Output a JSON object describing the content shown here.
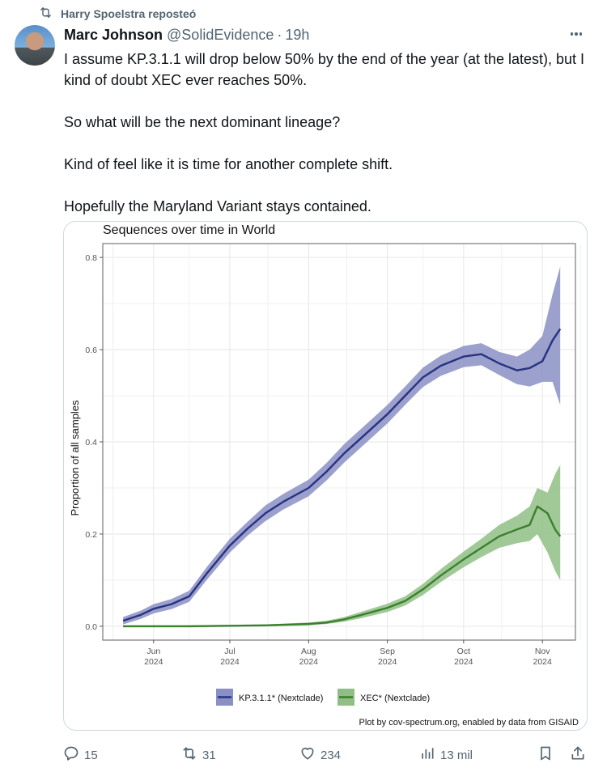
{
  "repost": {
    "icon": "repost-icon",
    "text": "Harry Spoelstra reposteó"
  },
  "author": {
    "avatar": "avatar",
    "name": "Marc Johnson",
    "handle": "@SolidEvidence",
    "separator": "·",
    "time": "19h"
  },
  "more_icon": "more-icon",
  "tweet": {
    "paragraphs": [
      "I assume KP.3.1.1 will drop below 50% by the end of the year (at the latest), but I kind of doubt XEC ever reaches 50%.",
      "So what will be the next dominant lineage?",
      "Kind of feel like it is time for another complete shift.",
      "Hopefully the Maryland Variant stays contained."
    ]
  },
  "actions": {
    "reply": {
      "icon": "reply-icon",
      "count": "15"
    },
    "repost": {
      "icon": "repost-icon",
      "count": "31"
    },
    "like": {
      "icon": "heart-icon",
      "count": "234"
    },
    "views": {
      "icon": "views-icon",
      "count": "13 mil"
    },
    "bookmark": {
      "icon": "bookmark-icon"
    },
    "share": {
      "icon": "share-icon"
    }
  },
  "colors": {
    "kp_line": "#283380",
    "kp_band": "#8a8fc4",
    "xec_line": "#3b7f2e",
    "xec_band": "#8fbf85",
    "text_secondary": "#536471"
  },
  "chart_data": {
    "type": "line",
    "title": "Sequences over time in World",
    "xlabel": "",
    "ylabel": "Proportion of all samples",
    "ylim": [
      -0.03,
      0.83
    ],
    "yticks": [
      0.0,
      0.2,
      0.4,
      0.6,
      0.8
    ],
    "ytick_labels": [
      "0.0",
      "0.2",
      "0.4",
      "0.6",
      "0.8"
    ],
    "xrange": [
      "2024-05-12",
      "2024-11-14"
    ],
    "xticks": [
      "2024-06-01",
      "2024-07-01",
      "2024-08-01",
      "2024-09-01",
      "2024-10-01",
      "2024-11-01"
    ],
    "xtick_labels": [
      [
        "Jun",
        "2024"
      ],
      [
        "Jul",
        "2024"
      ],
      [
        "Aug",
        "2024"
      ],
      [
        "Sep",
        "2024"
      ],
      [
        "Oct",
        "2024"
      ],
      [
        "Nov",
        "2024"
      ]
    ],
    "grid": true,
    "legend_position": "bottom",
    "caption": "Plot by cov-spectrum.org, enabled by data from GISAID",
    "series": [
      {
        "name": "KP.3.1.1* (Nextclade)",
        "x": [
          "2024-05-20",
          "2024-05-27",
          "2024-06-01",
          "2024-06-08",
          "2024-06-15",
          "2024-06-22",
          "2024-07-01",
          "2024-07-08",
          "2024-07-15",
          "2024-07-22",
          "2024-08-01",
          "2024-08-08",
          "2024-08-15",
          "2024-08-22",
          "2024-09-01",
          "2024-09-08",
          "2024-09-15",
          "2024-09-22",
          "2024-10-01",
          "2024-10-08",
          "2024-10-15",
          "2024-10-22",
          "2024-10-27",
          "2024-11-01",
          "2024-11-05",
          "2024-11-08"
        ],
        "values": [
          0.012,
          0.025,
          0.038,
          0.048,
          0.065,
          0.115,
          0.175,
          0.212,
          0.245,
          0.27,
          0.3,
          0.335,
          0.375,
          0.41,
          0.46,
          0.5,
          0.54,
          0.565,
          0.585,
          0.59,
          0.57,
          0.555,
          0.56,
          0.575,
          0.62,
          0.645
        ],
        "lower": [
          0.004,
          0.016,
          0.028,
          0.037,
          0.053,
          0.101,
          0.16,
          0.197,
          0.228,
          0.253,
          0.282,
          0.316,
          0.355,
          0.39,
          0.44,
          0.48,
          0.519,
          0.543,
          0.562,
          0.566,
          0.545,
          0.525,
          0.52,
          0.53,
          0.53,
          0.48
        ],
        "upper": [
          0.02,
          0.034,
          0.048,
          0.059,
          0.077,
          0.129,
          0.19,
          0.227,
          0.262,
          0.287,
          0.318,
          0.354,
          0.395,
          0.43,
          0.48,
          0.52,
          0.561,
          0.587,
          0.608,
          0.614,
          0.595,
          0.585,
          0.6,
          0.63,
          0.72,
          0.78
        ]
      },
      {
        "name": "XEC* (Nextclade)",
        "x": [
          "2024-05-20",
          "2024-06-15",
          "2024-07-15",
          "2024-08-01",
          "2024-08-08",
          "2024-08-15",
          "2024-08-22",
          "2024-09-01",
          "2024-09-08",
          "2024-09-15",
          "2024-09-22",
          "2024-10-01",
          "2024-10-08",
          "2024-10-15",
          "2024-10-22",
          "2024-10-27",
          "2024-10-30",
          "2024-11-03",
          "2024-11-06",
          "2024-11-08"
        ],
        "values": [
          0.0,
          0.0,
          0.002,
          0.005,
          0.008,
          0.015,
          0.025,
          0.04,
          0.055,
          0.08,
          0.11,
          0.145,
          0.17,
          0.195,
          0.21,
          0.22,
          0.26,
          0.245,
          0.21,
          0.195
        ],
        "lower": [
          0.0,
          0.0,
          0.0,
          0.002,
          0.005,
          0.01,
          0.018,
          0.031,
          0.045,
          0.068,
          0.096,
          0.128,
          0.15,
          0.17,
          0.18,
          0.185,
          0.2,
          0.16,
          0.12,
          0.1
        ],
        "upper": [
          0.002,
          0.002,
          0.004,
          0.008,
          0.012,
          0.02,
          0.032,
          0.049,
          0.065,
          0.092,
          0.124,
          0.162,
          0.19,
          0.22,
          0.24,
          0.26,
          0.3,
          0.29,
          0.33,
          0.35
        ]
      }
    ]
  }
}
